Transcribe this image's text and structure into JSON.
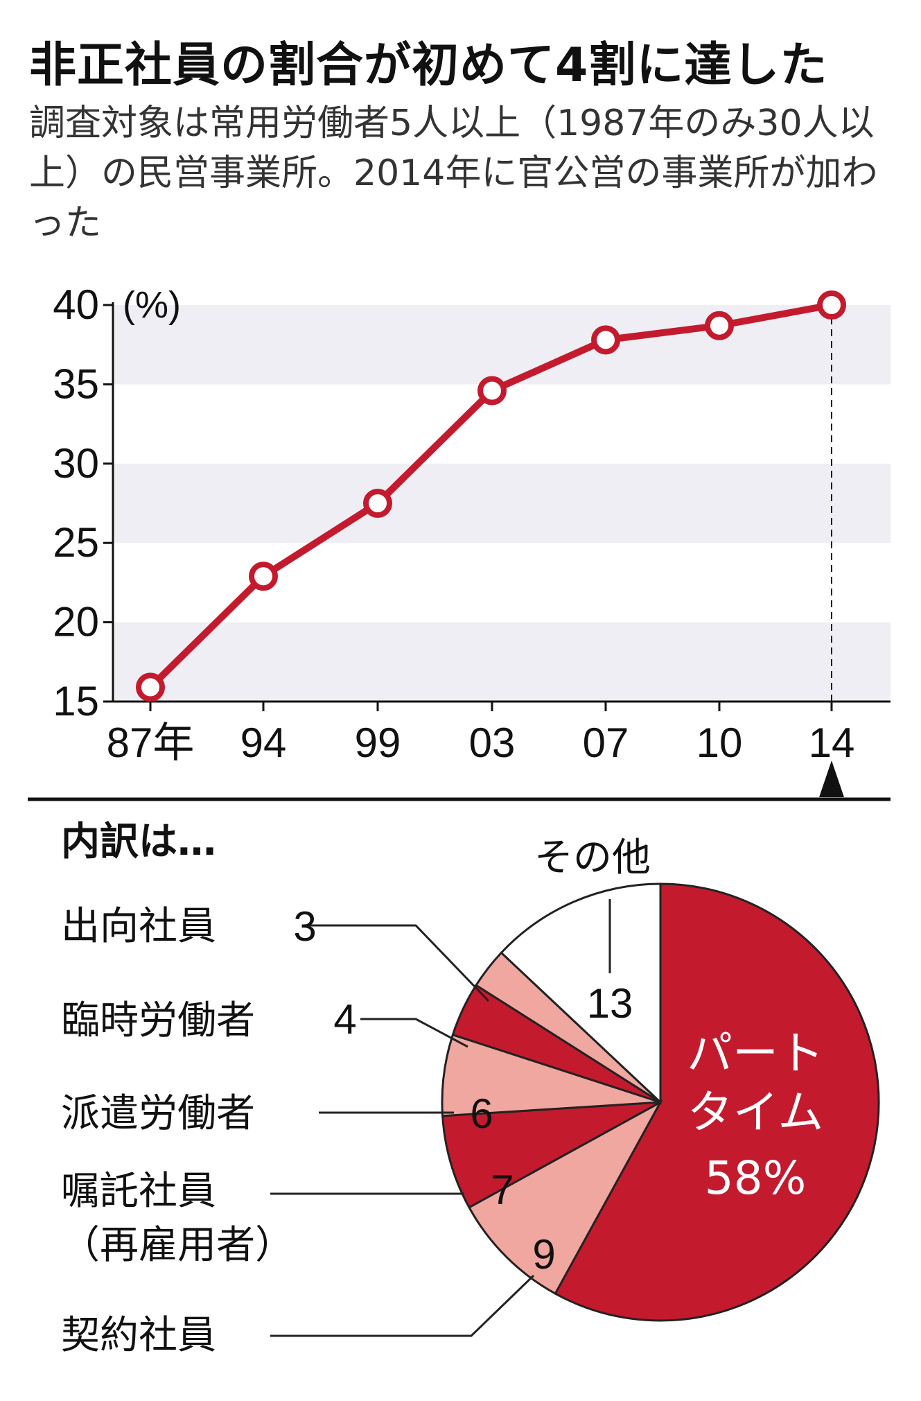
{
  "title": "非正社員の割合が初めて4割に達した",
  "subtitle": "調査対象は常用労働者5人以上（1987年のみ30人以上）の民営事業所。2014年に官公営の事業所が加わった",
  "colors": {
    "line": "#c41a2e",
    "dark_slice": "#c41a2e",
    "light_slice": "#f0a7a0",
    "other_slice": "#ffffff",
    "band": "#eeeef4"
  },
  "chart_data": [
    {
      "type": "line",
      "x": [
        "87年",
        "94",
        "99",
        "03",
        "07",
        "10",
        "14"
      ],
      "values": [
        15.9,
        22.9,
        27.5,
        34.6,
        37.8,
        38.7,
        40.0
      ],
      "ylim": [
        15,
        40
      ],
      "yticks": [
        40,
        35,
        30,
        25,
        20,
        15
      ],
      "yunit": "(%)",
      "grid": "alternating horizontal bands",
      "highlight": "14"
    },
    {
      "type": "pie",
      "heading": "内訳は…",
      "slices": [
        {
          "key": "part",
          "label": "パートタイム",
          "value": 58,
          "value_text": "58%",
          "label_lines": [
            "パート",
            "タイム"
          ],
          "color": "#c41a2e"
        },
        {
          "key": "keiyaku",
          "label": "契約社員",
          "value": 9,
          "value_text": "9",
          "color": "#f0a7a0"
        },
        {
          "key": "shokutaku",
          "label": "嘱託社員（再雇用者）",
          "value": 7,
          "value_text": "7",
          "label_lines": [
            "嘱託社員",
            "（再雇用者）"
          ],
          "color": "#c41a2e"
        },
        {
          "key": "haken",
          "label": "派遣労働者",
          "value": 6,
          "value_text": "6",
          "color": "#f0a7a0"
        },
        {
          "key": "rinji",
          "label": "臨時労働者",
          "value": 4,
          "value_text": "4",
          "color": "#c41a2e"
        },
        {
          "key": "shukko",
          "label": "出向社員",
          "value": 3,
          "value_text": "3",
          "color": "#f0a7a0"
        },
        {
          "key": "other",
          "label": "その他",
          "value": 13,
          "value_text": "13",
          "color": "#ffffff"
        }
      ]
    }
  ]
}
